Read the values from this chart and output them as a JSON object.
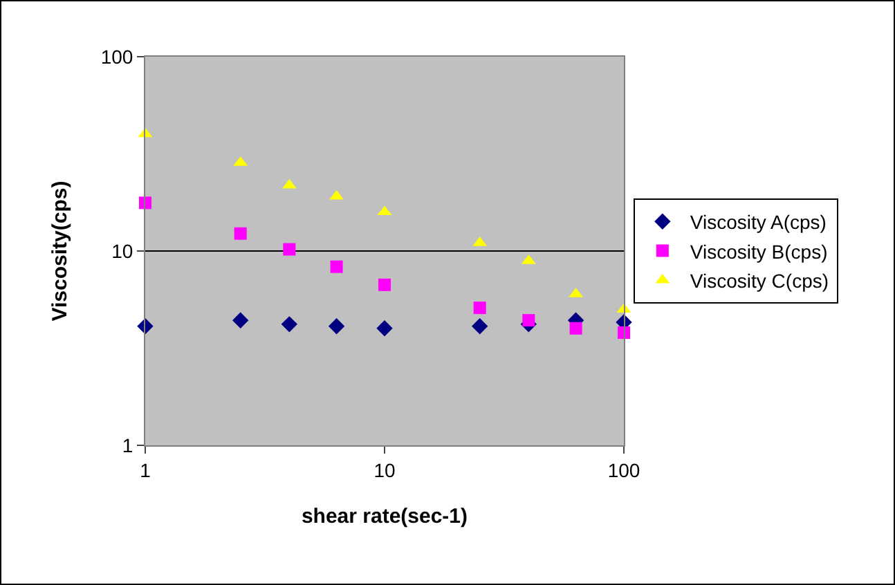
{
  "chart_data": {
    "type": "scatter",
    "xlabel": "shear rate(sec-1)",
    "ylabel": "Viscosity(cps)",
    "log": "xy",
    "x": [
      1,
      2.5,
      4,
      6.3,
      10,
      25,
      40,
      63,
      100
    ],
    "xlim": [
      1,
      100
    ],
    "xticks": [
      1,
      10,
      100
    ],
    "ylim": [
      1,
      100
    ],
    "yticks": [
      1,
      10,
      100
    ],
    "grid": "y",
    "legend": "right",
    "series": [
      {
        "name": "Viscosity A(cps)",
        "color": "#000080",
        "marker": "diamond",
        "values": [
          4.1,
          4.4,
          4.2,
          4.1,
          4.0,
          4.1,
          4.2,
          4.4,
          4.3
        ]
      },
      {
        "name": "Viscosity B(cps)",
        "color": "#ff00ff",
        "marker": "square",
        "values": [
          17.7,
          12.3,
          10.2,
          8.3,
          6.7,
          5.1,
          4.4,
          4.0,
          3.8
        ]
      },
      {
        "name": "Viscosity C(cps)",
        "color": "#ffff00",
        "marker": "triangle",
        "values": [
          40,
          28.5,
          21.8,
          19.1,
          15.9,
          11,
          8.9,
          6.0,
          5.0
        ]
      }
    ]
  }
}
